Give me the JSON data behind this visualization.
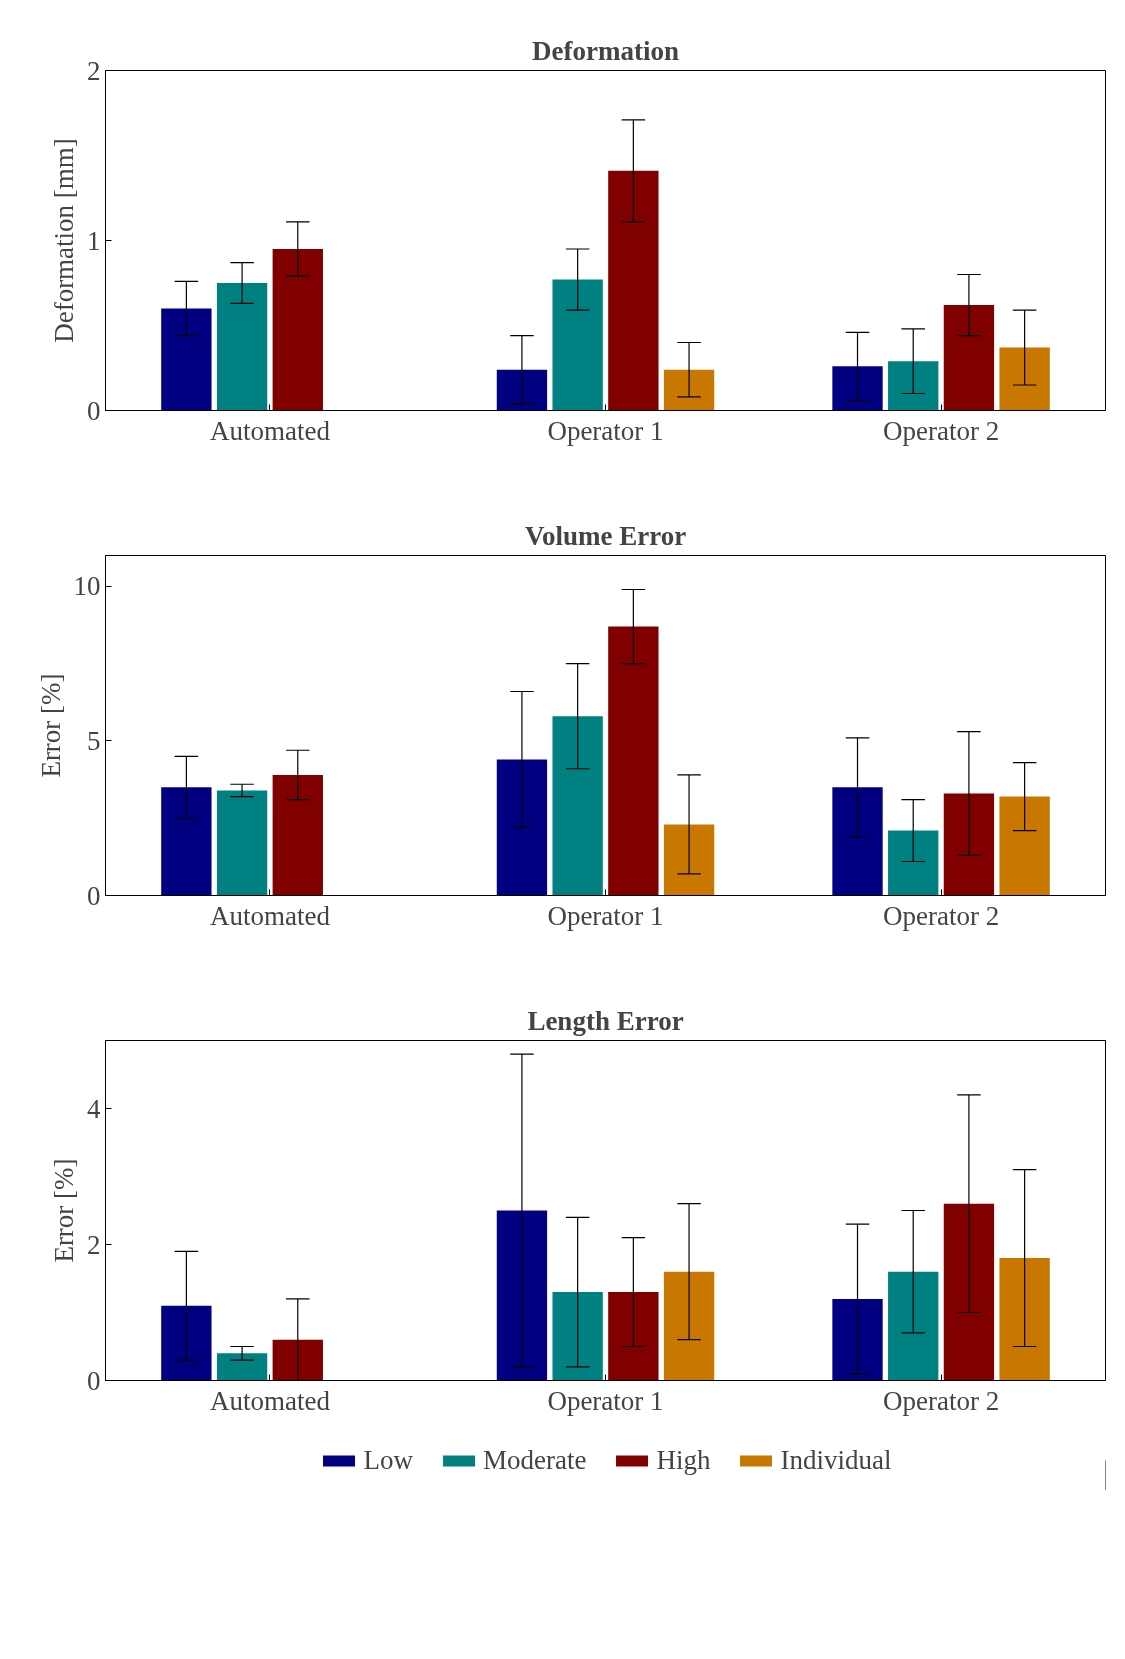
{
  "chart_data": [
    {
      "type": "bar",
      "title": "Deformation",
      "ylabel": "Deformation [mm]",
      "categories": [
        "Automated",
        "Operator 1",
        "Operator 2"
      ],
      "ylim": [
        0,
        2
      ],
      "yticks": [
        0,
        1,
        2
      ],
      "grid": false,
      "legend": false,
      "series": [
        {
          "color": "#000080",
          "values": [
            0.6,
            0.24,
            0.26
          ],
          "errors": [
            0.16,
            0.2,
            0.2
          ]
        },
        {
          "color": "#008080",
          "values": [
            0.75,
            0.77,
            0.29
          ],
          "errors": [
            0.12,
            0.18,
            0.19
          ]
        },
        {
          "color": "#800000",
          "values": [
            0.95,
            1.41,
            0.62
          ],
          "errors": [
            0.16,
            0.3,
            0.18
          ]
        },
        {
          "color": "#c87800",
          "values": [
            null,
            0.24,
            0.37
          ],
          "errors": [
            null,
            0.16,
            0.22
          ]
        }
      ]
    },
    {
      "type": "bar",
      "title": "Volume Error",
      "ylabel": "Error [%]",
      "categories": [
        "Automated",
        "Operator 1",
        "Operator 2"
      ],
      "ylim": [
        0,
        11
      ],
      "yticks": [
        0,
        5,
        10
      ],
      "grid": false,
      "legend": false,
      "series": [
        {
          "color": "#000080",
          "values": [
            3.5,
            4.4,
            3.5
          ],
          "errors": [
            1.0,
            2.2,
            1.6
          ]
        },
        {
          "color": "#008080",
          "values": [
            3.4,
            5.8,
            2.1
          ],
          "errors": [
            0.2,
            1.7,
            1.0
          ]
        },
        {
          "color": "#800000",
          "values": [
            3.9,
            8.7,
            3.3
          ],
          "errors": [
            0.8,
            1.2,
            2.0
          ]
        },
        {
          "color": "#c87800",
          "values": [
            null,
            2.3,
            3.2
          ],
          "errors": [
            null,
            1.6,
            1.1
          ]
        }
      ]
    },
    {
      "type": "bar",
      "title": "Length Error",
      "ylabel": "Error [%]",
      "categories": [
        "Automated",
        "Operator 1",
        "Operator 2"
      ],
      "ylim": [
        0,
        5
      ],
      "yticks": [
        0,
        2,
        4
      ],
      "grid": false,
      "legend": "bottom",
      "series": [
        {
          "name": "Low",
          "color": "#000080",
          "values": [
            1.1,
            2.5,
            1.2
          ],
          "errors": [
            0.8,
            2.3,
            1.1
          ]
        },
        {
          "name": "Moderate",
          "color": "#008080",
          "values": [
            0.4,
            1.3,
            1.6
          ],
          "errors": [
            0.1,
            1.1,
            0.9
          ]
        },
        {
          "name": "High",
          "color": "#800000",
          "values": [
            0.6,
            1.3,
            2.6
          ],
          "errors": [
            0.6,
            0.8,
            1.6
          ]
        },
        {
          "name": "Individual",
          "color": "#c87800",
          "values": [
            null,
            1.6,
            1.8
          ],
          "errors": [
            null,
            1.0,
            1.3
          ]
        }
      ]
    }
  ]
}
